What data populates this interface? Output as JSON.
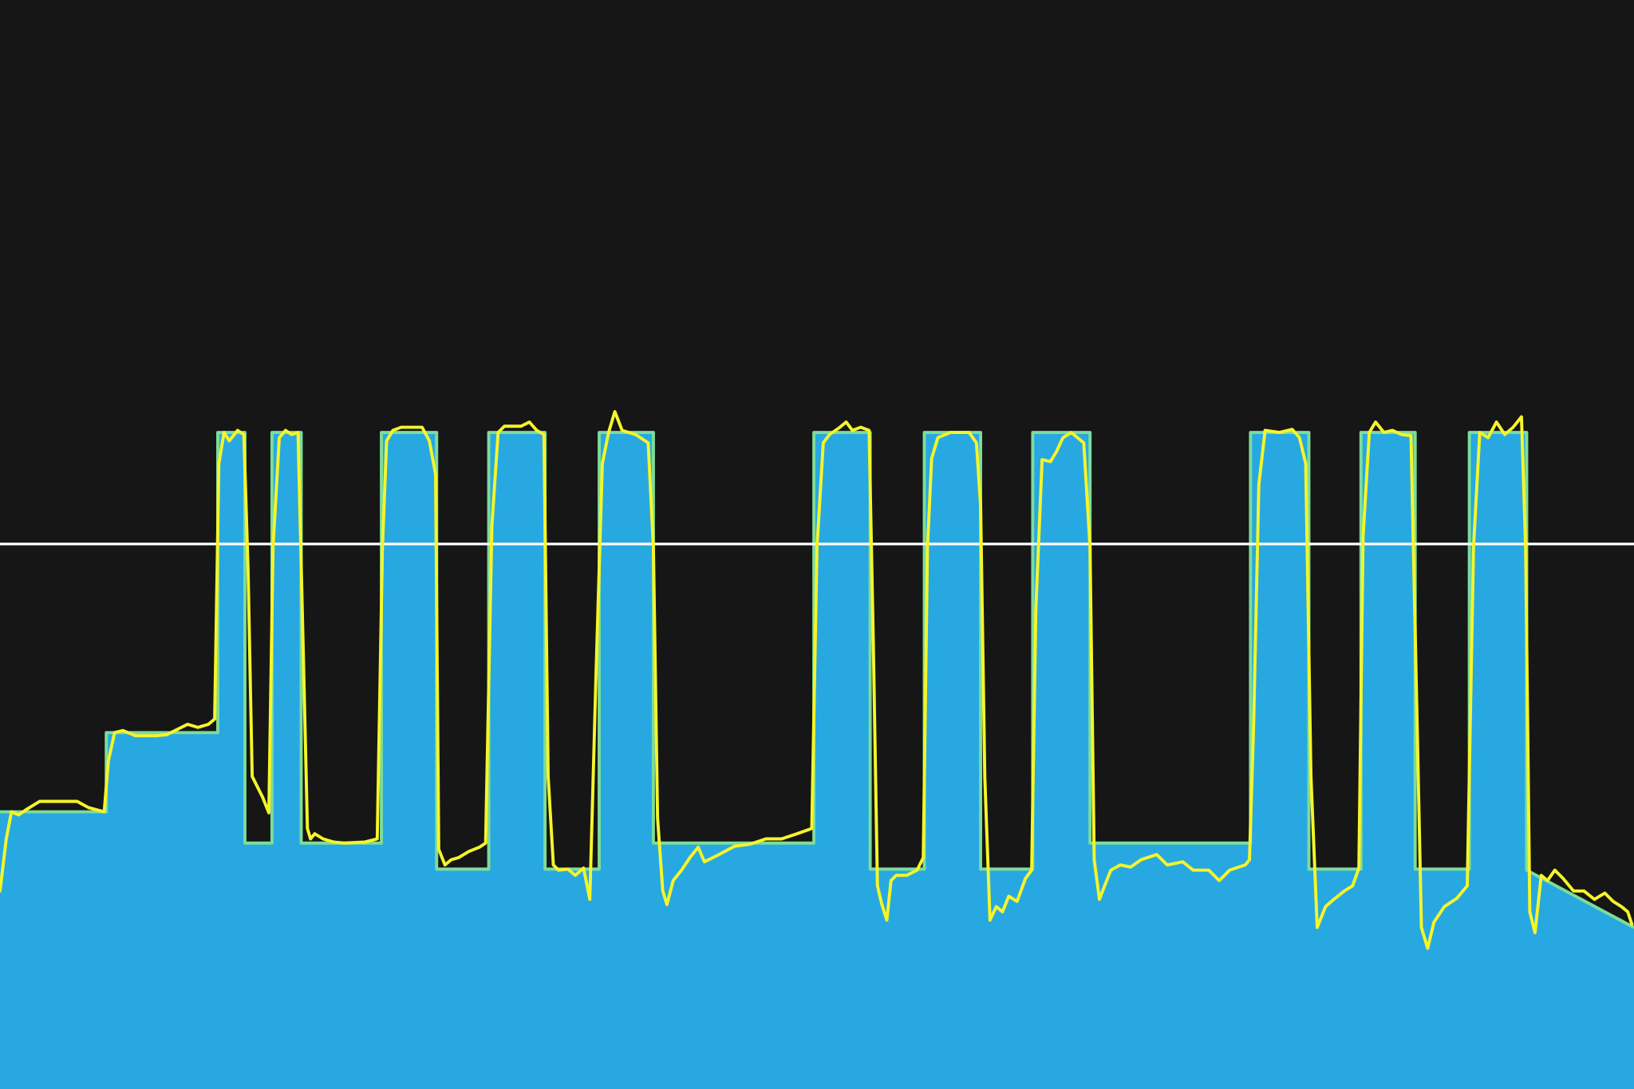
{
  "chart_data": {
    "type": "area",
    "title": "",
    "xlabel": "",
    "ylabel": "",
    "grid": false,
    "legend": "none",
    "xlim": [
      0,
      1568
    ],
    "ylim": [
      0,
      1045
    ],
    "colors": {
      "background": "#161616",
      "target_fill": "#28a8e0",
      "target_edge": "#7ddc9a",
      "actual_line": "#f5f52a",
      "reference_line": "#ffffff"
    },
    "reference_line": {
      "y": 523
    },
    "series": [
      {
        "kind": "target-steps",
        "points": [
          [
            0,
            266
          ],
          [
            102,
            266
          ],
          [
            102,
            342
          ],
          [
            209,
            342
          ],
          [
            209,
            630
          ],
          [
            235,
            630
          ],
          [
            235,
            236
          ],
          [
            261,
            236
          ],
          [
            261,
            630
          ],
          [
            289,
            630
          ],
          [
            289,
            236
          ],
          [
            366,
            236
          ],
          [
            366,
            630
          ],
          [
            419,
            630
          ],
          [
            419,
            211
          ],
          [
            469,
            211
          ],
          [
            469,
            630
          ],
          [
            523,
            630
          ],
          [
            523,
            211
          ],
          [
            575,
            211
          ],
          [
            575,
            630
          ],
          [
            627,
            630
          ],
          [
            627,
            236
          ],
          [
            781,
            236
          ],
          [
            781,
            630
          ],
          [
            835,
            630
          ],
          [
            835,
            211
          ],
          [
            887,
            211
          ],
          [
            887,
            630
          ],
          [
            941,
            630
          ],
          [
            941,
            211
          ],
          [
            991,
            211
          ],
          [
            991,
            630
          ],
          [
            1046,
            630
          ],
          [
            1046,
            236
          ],
          [
            1200,
            236
          ],
          [
            1200,
            630
          ],
          [
            1256,
            630
          ],
          [
            1256,
            211
          ],
          [
            1306,
            211
          ],
          [
            1306,
            630
          ],
          [
            1358,
            630
          ],
          [
            1358,
            211
          ],
          [
            1410,
            211
          ],
          [
            1410,
            630
          ],
          [
            1465,
            630
          ],
          [
            1465,
            210
          ],
          [
            1568,
            155
          ]
        ]
      },
      {
        "kind": "actual",
        "points": [
          [
            0,
            190
          ],
          [
            6,
            240
          ],
          [
            11,
            266
          ],
          [
            18,
            263
          ],
          [
            25,
            268
          ],
          [
            38,
            276
          ],
          [
            74,
            276
          ],
          [
            85,
            270
          ],
          [
            100,
            266
          ],
          [
            104,
            315
          ],
          [
            110,
            342
          ],
          [
            118,
            344
          ],
          [
            130,
            339
          ],
          [
            150,
            339
          ],
          [
            160,
            340
          ],
          [
            170,
            345
          ],
          [
            180,
            350
          ],
          [
            190,
            347
          ],
          [
            200,
            350
          ],
          [
            206,
            355
          ],
          [
            210,
            600
          ],
          [
            215,
            630
          ],
          [
            220,
            622
          ],
          [
            228,
            632
          ],
          [
            234,
            628
          ],
          [
            238,
            500
          ],
          [
            242,
            300
          ],
          [
            247,
            290
          ],
          [
            252,
            280
          ],
          [
            258,
            265
          ],
          [
            262,
            520
          ],
          [
            268,
            625
          ],
          [
            274,
            632
          ],
          [
            280,
            628
          ],
          [
            286,
            630
          ],
          [
            291,
            420
          ],
          [
            295,
            250
          ],
          [
            298,
            240
          ],
          [
            302,
            245
          ],
          [
            310,
            240
          ],
          [
            320,
            237
          ],
          [
            330,
            236
          ],
          [
            350,
            237
          ],
          [
            362,
            240
          ],
          [
            367,
            520
          ],
          [
            371,
            622
          ],
          [
            377,
            632
          ],
          [
            385,
            635
          ],
          [
            405,
            635
          ],
          [
            412,
            622
          ],
          [
            418,
            590
          ],
          [
            421,
            230
          ],
          [
            427,
            215
          ],
          [
            433,
            220
          ],
          [
            440,
            222
          ],
          [
            450,
            228
          ],
          [
            460,
            232
          ],
          [
            466,
            236
          ],
          [
            472,
            540
          ],
          [
            478,
            630
          ],
          [
            484,
            636
          ],
          [
            500,
            636
          ],
          [
            508,
            640
          ],
          [
            515,
            632
          ],
          [
            522,
            628
          ],
          [
            526,
            300
          ],
          [
            531,
            215
          ],
          [
            536,
            210
          ],
          [
            545,
            211
          ],
          [
            552,
            205
          ],
          [
            560,
            212
          ],
          [
            566,
            182
          ],
          [
            572,
            400
          ],
          [
            578,
            600
          ],
          [
            584,
            630
          ],
          [
            590,
            650
          ],
          [
            597,
            632
          ],
          [
            610,
            628
          ],
          [
            622,
            620
          ],
          [
            627,
            520
          ],
          [
            631,
            260
          ],
          [
            636,
            190
          ],
          [
            640,
            177
          ],
          [
            646,
            200
          ],
          [
            654,
            210
          ],
          [
            662,
            222
          ],
          [
            670,
            232
          ],
          [
            676,
            218
          ],
          [
            690,
            225
          ],
          [
            705,
            233
          ],
          [
            720,
            235
          ],
          [
            735,
            240
          ],
          [
            750,
            240
          ],
          [
            765,
            245
          ],
          [
            779,
            250
          ],
          [
            784,
            520
          ],
          [
            790,
            620
          ],
          [
            796,
            628
          ],
          [
            806,
            635
          ],
          [
            812,
            640
          ],
          [
            818,
            632
          ],
          [
            826,
            635
          ],
          [
            834,
            632
          ],
          [
            838,
            430
          ],
          [
            842,
            195
          ],
          [
            846,
            178
          ],
          [
            851,
            162
          ],
          [
            855,
            200
          ],
          [
            860,
            205
          ],
          [
            870,
            205
          ],
          [
            880,
            210
          ],
          [
            886,
            222
          ],
          [
            890,
            520
          ],
          [
            894,
            605
          ],
          [
            900,
            625
          ],
          [
            912,
            630
          ],
          [
            930,
            630
          ],
          [
            937,
            620
          ],
          [
            941,
            560
          ],
          [
            945,
            300
          ],
          [
            950,
            162
          ],
          [
            956,
            175
          ],
          [
            962,
            170
          ],
          [
            968,
            185
          ],
          [
            976,
            180
          ],
          [
            984,
            202
          ],
          [
            990,
            210
          ],
          [
            994,
            460
          ],
          [
            1000,
            604
          ],
          [
            1008,
            602
          ],
          [
            1014,
            612
          ],
          [
            1020,
            625
          ],
          [
            1028,
            630
          ],
          [
            1040,
            620
          ],
          [
            1046,
            520
          ],
          [
            1050,
            220
          ],
          [
            1055,
            182
          ],
          [
            1060,
            195
          ],
          [
            1066,
            210
          ],
          [
            1075,
            215
          ],
          [
            1085,
            213
          ],
          [
            1095,
            220
          ],
          [
            1110,
            225
          ],
          [
            1120,
            215
          ],
          [
            1135,
            218
          ],
          [
            1145,
            210
          ],
          [
            1160,
            210
          ],
          [
            1170,
            200
          ],
          [
            1180,
            210
          ],
          [
            1195,
            215
          ],
          [
            1199,
            220
          ],
          [
            1203,
            350
          ],
          [
            1208,
            580
          ],
          [
            1214,
            632
          ],
          [
            1228,
            630
          ],
          [
            1240,
            633
          ],
          [
            1247,
            625
          ],
          [
            1253,
            600
          ],
          [
            1258,
            300
          ],
          [
            1264,
            155
          ],
          [
            1272,
            175
          ],
          [
            1280,
            182
          ],
          [
            1290,
            190
          ],
          [
            1298,
            195
          ],
          [
            1304,
            212
          ],
          [
            1308,
            530
          ],
          [
            1314,
            630
          ],
          [
            1320,
            640
          ],
          [
            1328,
            630
          ],
          [
            1336,
            632
          ],
          [
            1345,
            628
          ],
          [
            1354,
            627
          ],
          [
            1358,
            440
          ],
          [
            1364,
            155
          ],
          [
            1370,
            135
          ],
          [
            1376,
            160
          ],
          [
            1386,
            175
          ],
          [
            1398,
            183
          ],
          [
            1408,
            195
          ],
          [
            1414,
            520
          ],
          [
            1420,
            630
          ],
          [
            1428,
            625
          ],
          [
            1436,
            640
          ],
          [
            1444,
            628
          ],
          [
            1452,
            635
          ],
          [
            1460,
            645
          ],
          [
            1464,
            520
          ],
          [
            1468,
            170
          ],
          [
            1473,
            150
          ],
          [
            1479,
            205
          ],
          [
            1485,
            200
          ],
          [
            1492,
            210
          ],
          [
            1500,
            202
          ],
          [
            1510,
            190
          ],
          [
            1520,
            190
          ],
          [
            1530,
            182
          ],
          [
            1540,
            188
          ],
          [
            1548,
            180
          ],
          [
            1556,
            175
          ],
          [
            1562,
            170
          ],
          [
            1566,
            158
          ]
        ]
      }
    ]
  }
}
